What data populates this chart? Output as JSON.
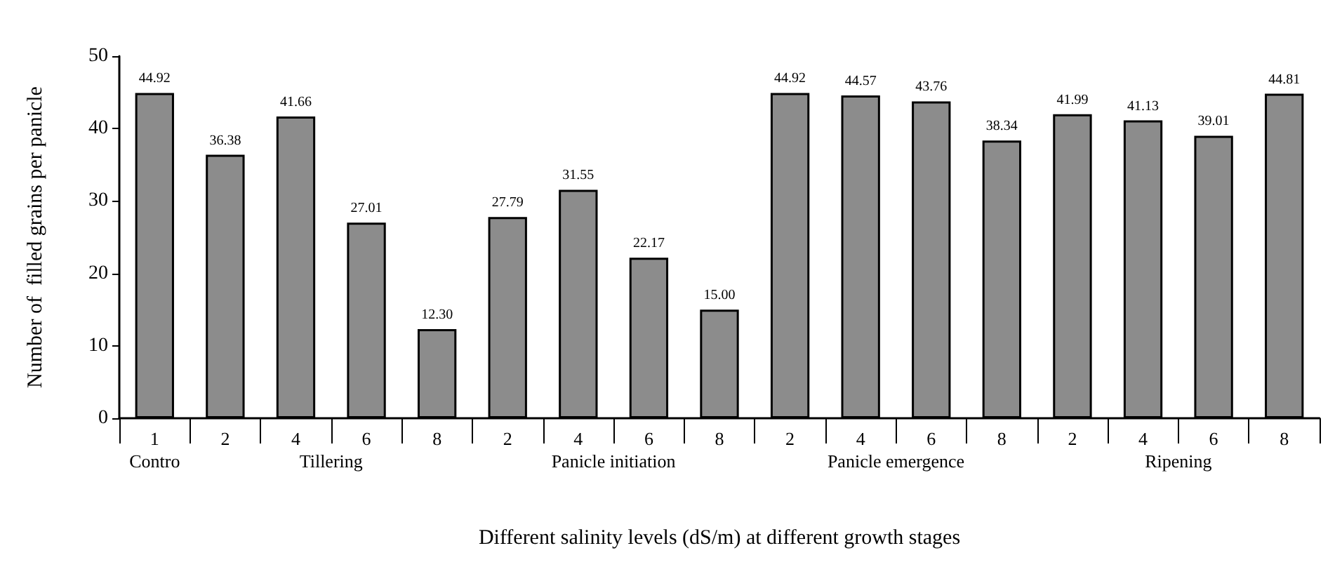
{
  "chart_data": {
    "type": "bar",
    "xlabel": "Different salinity levels (dS/m) at different growth stages",
    "ylabel": "Number of  filled grains per panicle",
    "categories": [
      "1",
      "2",
      "4",
      "6",
      "8",
      "2",
      "4",
      "6",
      "8",
      "2",
      "4",
      "6",
      "8",
      "2",
      "4",
      "6",
      "8"
    ],
    "values": [
      44.92,
      36.38,
      41.66,
      27.01,
      12.3,
      27.79,
      31.55,
      22.17,
      15.0,
      44.92,
      44.57,
      43.76,
      38.34,
      41.99,
      41.13,
      39.01,
      44.81
    ],
    "value_labels": [
      "44.92",
      "36.38",
      "41.66",
      "27.01",
      "12.30",
      "27.79",
      "31.55",
      "22.17",
      "15.00",
      "44.92",
      "44.57",
      "43.76",
      "38.34",
      "41.99",
      "41.13",
      "39.01",
      "44.81"
    ],
    "color": "#8c8c8c",
    "annotations": [
      "Contro",
      "Tillering",
      "Panicle initiation",
      "Panicle emergence",
      "Ripening"
    ],
    "ylim": [
      0,
      50
    ],
    "yticks": [
      0,
      10,
      20,
      30,
      40,
      50
    ],
    "grid": false
  }
}
